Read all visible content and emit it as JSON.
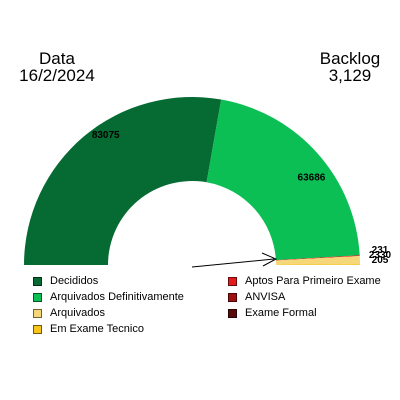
{
  "header": {
    "date_label": "Data",
    "date_value": "16/2/2024",
    "backlog_label": "Backlog",
    "backlog_value": "3,129"
  },
  "chart_data": {
    "type": "pie",
    "variant": "half-donut",
    "title": "",
    "legend_position": "bottom",
    "slices": [
      {
        "name": "Decididos",
        "value": 83075,
        "label": "83075",
        "color": "#066b33"
      },
      {
        "name": "Arquivados Definitivamente",
        "value": 63686,
        "label": "63686",
        "color": "#0bbf55"
      },
      {
        "name": "Aptos Para Primeiro Exame",
        "value": 231,
        "label": "231",
        "color": "#e31b1b"
      },
      {
        "name": "ANVISA",
        "value": 0,
        "label": "",
        "color": "#a01010"
      },
      {
        "name": "Exame Formal",
        "value": 0,
        "label": "",
        "color": "#5a0a0a"
      },
      {
        "name": "Arquivados",
        "value": 2330,
        "label": "2330",
        "color": "#f5d77a"
      },
      {
        "name": "Em Exame Tecnico",
        "value": 205,
        "label": "205",
        "color": "#f7c51a"
      }
    ]
  },
  "legend": {
    "left": [
      {
        "label": "Decididos",
        "color": "#066b33"
      },
      {
        "label": "Arquivados Definitivamente",
        "color": "#0bbf55"
      },
      {
        "label": "Arquivados",
        "color": "#f5d77a"
      },
      {
        "label": "Em Exame Tecnico",
        "color": "#f7c51a"
      }
    ],
    "right": [
      {
        "label": "Aptos Para Primeiro Exame",
        "color": "#e31b1b"
      },
      {
        "label": "ANVISA",
        "color": "#a01010"
      },
      {
        "label": "Exame Formal",
        "color": "#5a0a0a"
      }
    ]
  }
}
